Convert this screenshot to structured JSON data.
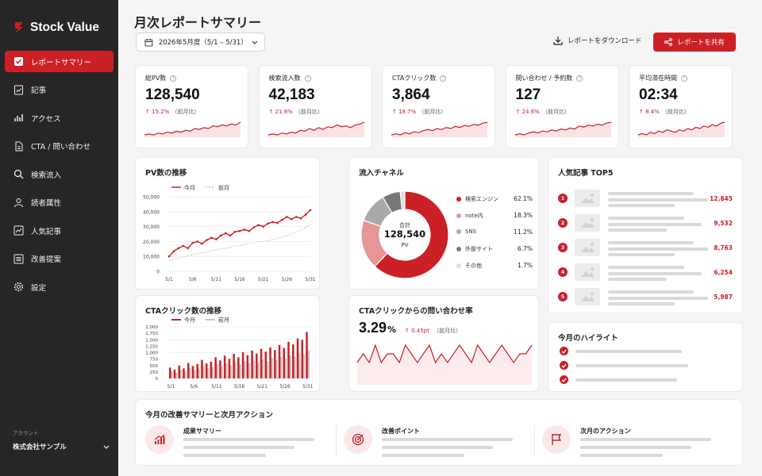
{
  "brand": {
    "name": "Stock Value",
    "color": "#cc2027"
  },
  "nav": [
    {
      "label": "レポートサマリー",
      "icon": "check-square-icon",
      "active": true
    },
    {
      "label": "記事",
      "icon": "document-chart-icon"
    },
    {
      "label": "アクセス",
      "icon": "bar-chart-icon"
    },
    {
      "label": "CTA / 問い合わせ",
      "icon": "file-icon"
    },
    {
      "label": "検索流入",
      "icon": "search-icon"
    },
    {
      "label": "読者属性",
      "icon": "users-icon"
    },
    {
      "label": "人気記事",
      "icon": "trend-chart-icon"
    },
    {
      "label": "改善提案",
      "icon": "list-icon"
    },
    {
      "label": "設定",
      "icon": "gear-icon"
    }
  ],
  "account": {
    "label": "アカウント",
    "name": "株式会社サンプル"
  },
  "header": {
    "title": "月次レポートサマリー",
    "date_range": "2026年5月度（5/1 – 5/31）",
    "download_label": "レポートをダウンロード",
    "share_label": "レポートを共有"
  },
  "kpis": [
    {
      "label": "総PV数",
      "value": "128,540",
      "change": "15.2%",
      "compare": "（前月比）",
      "trend": [
        3,
        4,
        3,
        5,
        4,
        6,
        5,
        7,
        6,
        8,
        7,
        10,
        9,
        11,
        10,
        13,
        12,
        14,
        13,
        15,
        14,
        17
      ]
    },
    {
      "label": "検索流入数",
      "value": "42,183",
      "change": "21.8%",
      "compare": "（前月比）",
      "trend": [
        4,
        5,
        4,
        6,
        5,
        7,
        6,
        9,
        8,
        11,
        9,
        12,
        10,
        13,
        12,
        15,
        13,
        14,
        12,
        15,
        16,
        18
      ]
    },
    {
      "label": "CTAクリック数",
      "value": "3,864",
      "change": "18.7%",
      "compare": "（前月比）",
      "trend": [
        3,
        4,
        3,
        5,
        4,
        6,
        5,
        7,
        8,
        7,
        9,
        8,
        10,
        9,
        11,
        10,
        12,
        11,
        13,
        12,
        14,
        15
      ]
    },
    {
      "label": "問い合わせ / 予約数",
      "value": "127",
      "change": "24.6%",
      "compare": "（前月比）",
      "trend": [
        3,
        4,
        3,
        5,
        6,
        5,
        7,
        6,
        8,
        7,
        9,
        8,
        10,
        9,
        12,
        11,
        13,
        12,
        14,
        13,
        15,
        16
      ]
    },
    {
      "label": "平均滞在時間",
      "value": "02:34",
      "change": "8.4%",
      "compare": "（前月比）",
      "trend": [
        4,
        5,
        4,
        6,
        5,
        7,
        6,
        8,
        7,
        6,
        8,
        7,
        9,
        8,
        10,
        9,
        11,
        10,
        12,
        11,
        13,
        14
      ]
    }
  ],
  "pv_chart": {
    "title": "PV数の推移",
    "legend_current": "今月",
    "legend_previous": "前月",
    "colors": {
      "current": "#cc2027",
      "previous": "#c8c8c8"
    }
  },
  "channels": {
    "title": "流入チャネル",
    "center_label": "合計",
    "center_value": "128,540",
    "center_unit": "PV",
    "items": [
      {
        "name": "検索エンジン",
        "pct": "62.1%",
        "value": 62.1,
        "color": "#cc2027"
      },
      {
        "name": "note内",
        "pct": "18.3%",
        "value": 18.3,
        "color": "#e79596"
      },
      {
        "name": "SNS",
        "pct": "11.2%",
        "value": 11.2,
        "color": "#a9a9a9"
      },
      {
        "name": "外部サイト",
        "pct": "6.7%",
        "value": 6.7,
        "color": "#777777"
      },
      {
        "name": "その他",
        "pct": "1.7%",
        "value": 1.7,
        "color": "#dedede"
      }
    ]
  },
  "top5": {
    "title": "人気記事 TOP5",
    "items": [
      {
        "rank": "1",
        "value": "12,845"
      },
      {
        "rank": "2",
        "value": "9,532"
      },
      {
        "rank": "3",
        "value": "8,763"
      },
      {
        "rank": "4",
        "value": "6,254"
      },
      {
        "rank": "5",
        "value": "5,987"
      }
    ]
  },
  "cta_chart": {
    "title": "CTAクリック数の推移",
    "legend_current": "今月",
    "legend_previous": "前月"
  },
  "cta_rate": {
    "title": "CTAクリックからの問い合わせ率",
    "value": "3.29",
    "unit": "%",
    "change": "0.45pt",
    "compare": "（前月比）",
    "trend": [
      5,
      6,
      5,
      7,
      5,
      6,
      6,
      5,
      7,
      6,
      5,
      6,
      7,
      5,
      6,
      5,
      6,
      7,
      6,
      5,
      7,
      6,
      5,
      6,
      7,
      6,
      5,
      6,
      6,
      7
    ]
  },
  "highlights": {
    "title": "今月のハイライト"
  },
  "summary": {
    "title": "今月の改善サマリーと次月アクション",
    "sections": [
      {
        "title": "成果サマリー",
        "icon": "growth-chart-icon"
      },
      {
        "title": "改善ポイント",
        "icon": "target-icon"
      },
      {
        "title": "次月のアクション",
        "icon": "flag-icon"
      }
    ]
  },
  "chart_data": [
    {
      "type": "line",
      "title": "PV数の推移",
      "x": [
        "5/1",
        "5/2",
        "5/3",
        "5/4",
        "5/5",
        "5/6",
        "5/7",
        "5/8",
        "5/9",
        "5/10",
        "5/11",
        "5/12",
        "5/13",
        "5/14",
        "5/15",
        "5/16",
        "5/17",
        "5/18",
        "5/19",
        "5/20",
        "5/21",
        "5/22",
        "5/23",
        "5/24",
        "5/25",
        "5/26",
        "5/27",
        "5/28",
        "5/29",
        "5/30",
        "5/31"
      ],
      "xticks": [
        "5/1",
        "5/6",
        "5/11",
        "5/16",
        "5/21",
        "5/26",
        "5/31"
      ],
      "yticks": [
        "0",
        "10,000",
        "20,000",
        "30,000",
        "40,000",
        "50,000"
      ],
      "ylim": [
        0,
        50000
      ],
      "series": [
        {
          "name": "今月",
          "values": [
            10000,
            13500,
            15500,
            17000,
            15500,
            19000,
            20000,
            18500,
            21000,
            22500,
            21500,
            24000,
            25500,
            24000,
            26500,
            27000,
            28000,
            27000,
            29500,
            31000,
            30000,
            32000,
            33000,
            32500,
            34500,
            36500,
            35000,
            36500,
            35500,
            38000,
            41000
          ]
        },
        {
          "name": "前月",
          "values": [
            7000,
            8000,
            9000,
            9500,
            10500,
            11000,
            12000,
            12500,
            13000,
            14000,
            14500,
            15000,
            15500,
            16000,
            17000,
            17500,
            18000,
            18500,
            19000,
            20000,
            20000,
            20500,
            21500,
            22000,
            23000,
            24000,
            25000,
            26500,
            27500,
            29500,
            31000
          ]
        }
      ]
    },
    {
      "type": "bar",
      "title": "CTAクリック数の推移",
      "x": [
        "5/1",
        "5/2",
        "5/3",
        "5/4",
        "5/5",
        "5/6",
        "5/7",
        "5/8",
        "5/9",
        "5/10",
        "5/11",
        "5/12",
        "5/13",
        "5/14",
        "5/15",
        "5/16",
        "5/17",
        "5/18",
        "5/19",
        "5/20",
        "5/21",
        "5/22",
        "5/23",
        "5/24",
        "5/25",
        "5/26",
        "5/27",
        "5/28",
        "5/29",
        "5/30",
        "5/31"
      ],
      "xticks": [
        "5/1",
        "5/6",
        "5/11",
        "5/16",
        "5/21",
        "5/26",
        "5/31"
      ],
      "yticks": [
        "0",
        "250",
        "500",
        "750",
        "1,000",
        "1,250",
        "1,500",
        "1,750",
        "2,000"
      ],
      "ylim": [
        0,
        2000
      ],
      "series": [
        {
          "name": "今月",
          "values": [
            420,
            340,
            500,
            390,
            600,
            480,
            560,
            720,
            580,
            650,
            820,
            700,
            880,
            760,
            950,
            820,
            1020,
            900,
            1080,
            960,
            1150,
            1040,
            1200,
            1100,
            1300,
            1180,
            1420,
            1320,
            1550,
            1500,
            1800
          ]
        },
        {
          "name": "前月",
          "values": [
            280,
            220,
            330,
            260,
            400,
            320,
            380,
            480,
            390,
            430,
            550,
            470,
            580,
            500,
            620,
            540,
            660,
            590,
            700,
            620,
            740,
            670,
            780,
            710,
            830,
            760,
            900,
            850,
            980,
            940,
            1100
          ]
        }
      ]
    },
    {
      "type": "pie",
      "title": "流入チャネル",
      "categories": [
        "検索エンジン",
        "note内",
        "SNS",
        "外部サイト",
        "その他"
      ],
      "values": [
        62.1,
        18.3,
        11.2,
        6.7,
        1.7
      ]
    }
  ]
}
